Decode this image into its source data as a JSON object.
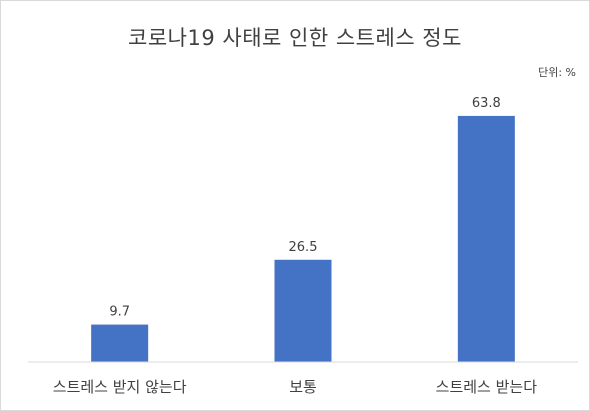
{
  "chart_data": {
    "type": "bar",
    "title": "코로나19 사태로 인한 스트레스 정도",
    "unit_label": "단위: %",
    "categories": [
      "스트레스 받지 않는다",
      "보통",
      "스트레스 받는다"
    ],
    "values": [
      9.7,
      26.5,
      63.8
    ],
    "value_labels": [
      "9.7",
      "26.5",
      "63.8"
    ],
    "bar_color": "#4472C4",
    "axis_color": "#d9d9d9",
    "ylim": [
      0,
      70
    ],
    "grid": false,
    "legend": "none"
  }
}
